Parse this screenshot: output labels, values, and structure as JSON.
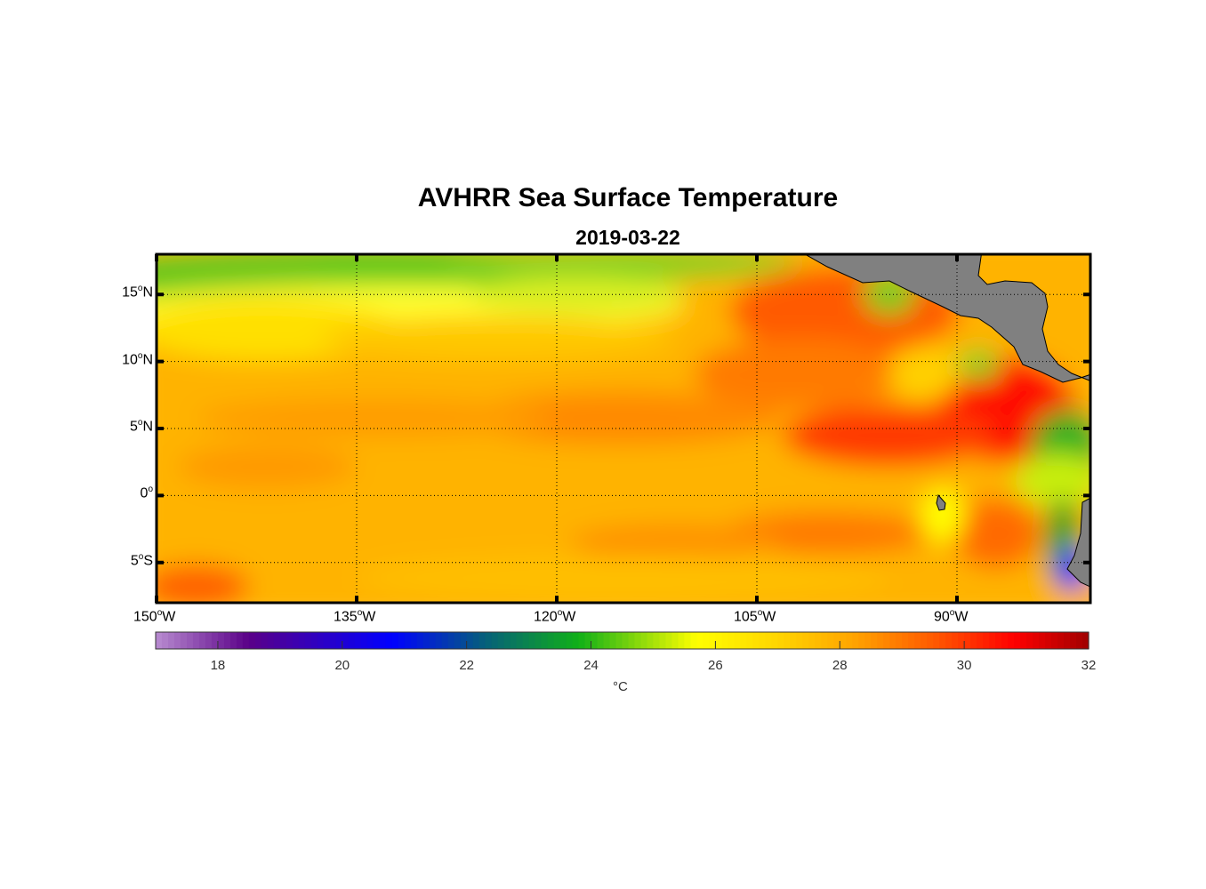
{
  "title": "AVHRR Sea Surface Temperature",
  "subtitle": "2019-03-22",
  "map": {
    "lon_range": [
      -150,
      -80
    ],
    "lat_range": [
      -8,
      18
    ],
    "lat_ticks": [
      {
        "value": 15,
        "num": "15",
        "hemi": "N"
      },
      {
        "value": 10,
        "num": "10",
        "hemi": "N"
      },
      {
        "value": 5,
        "num": "5",
        "hemi": "N"
      },
      {
        "value": 0,
        "num": "0",
        "hemi": ""
      },
      {
        "value": -5,
        "num": "5",
        "hemi": "S"
      }
    ],
    "lon_ticks": [
      {
        "value": -150,
        "num": "150",
        "hemi": "W"
      },
      {
        "value": -135,
        "num": "135",
        "hemi": "W"
      },
      {
        "value": -120,
        "num": "120",
        "hemi": "W"
      },
      {
        "value": -105,
        "num": "105",
        "hemi": "W"
      },
      {
        "value": -90,
        "num": "90",
        "hemi": "W"
      }
    ],
    "land_color": "#808080"
  },
  "colorbar": {
    "range": [
      17,
      32
    ],
    "ticks": [
      "18",
      "20",
      "22",
      "24",
      "26",
      "28",
      "30",
      "32"
    ],
    "unit": "°C",
    "stops": [
      [
        17,
        "#b88cd0"
      ],
      [
        18.5,
        "#5a0088"
      ],
      [
        20.8,
        "#0000ff"
      ],
      [
        22.3,
        "#06607a"
      ],
      [
        23.8,
        "#10b018"
      ],
      [
        25.7,
        "#ffff00"
      ],
      [
        27,
        "#ffd500"
      ],
      [
        28.2,
        "#ffa500"
      ],
      [
        29.5,
        "#ff5a00"
      ],
      [
        30.8,
        "#ff0000"
      ],
      [
        32,
        "#a00000"
      ]
    ]
  }
}
